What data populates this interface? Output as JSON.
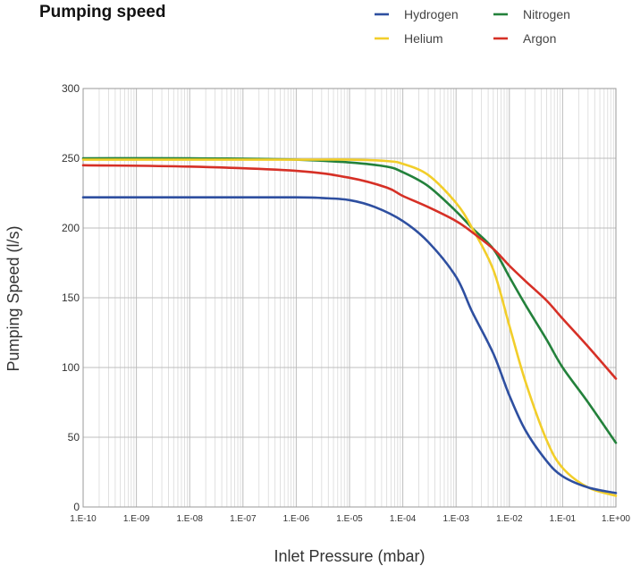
{
  "chart_data": {
    "type": "line",
    "title": "Pumping speed",
    "xlabel": "Inlet Pressure (mbar)",
    "ylabel": "Pumping Speed (l/s)",
    "x_scale": "log",
    "xlim": [
      1e-10,
      1
    ],
    "ylim": [
      0,
      300
    ],
    "grid": true,
    "legend_position": "top-right",
    "x_ticks": [
      {
        "value": 1e-10,
        "label": "1.E-10"
      },
      {
        "value": 1e-09,
        "label": "1.E-09"
      },
      {
        "value": 1e-08,
        "label": "1.E-08"
      },
      {
        "value": 1e-07,
        "label": "1.E-07"
      },
      {
        "value": 1e-06,
        "label": "1.E-06"
      },
      {
        "value": 1e-05,
        "label": "1.E-05"
      },
      {
        "value": 0.0001,
        "label": "1.E-04"
      },
      {
        "value": 0.001,
        "label": "1.E-03"
      },
      {
        "value": 0.01,
        "label": "1.E-02"
      },
      {
        "value": 0.1,
        "label": "1.E-01"
      },
      {
        "value": 1,
        "label": "1.E+00"
      }
    ],
    "y_ticks": [
      0,
      50,
      100,
      150,
      200,
      250,
      300
    ],
    "series": [
      {
        "name": "Hydrogen",
        "color": "#2E4FA0",
        "x": [
          1e-10,
          1e-08,
          1e-06,
          3e-06,
          1e-05,
          3e-05,
          0.0001,
          0.0003,
          0.001,
          0.002,
          0.005,
          0.01,
          0.02,
          0.05,
          0.1,
          0.3,
          1
        ],
        "y": [
          222,
          222,
          222,
          221.5,
          220,
          215,
          205,
          190,
          165,
          140,
          110,
          80,
          55,
          33,
          22,
          14,
          10
        ]
      },
      {
        "name": "Helium",
        "color": "#F2CE2A",
        "x": [
          1e-10,
          1e-08,
          1e-06,
          1e-05,
          5e-05,
          0.0001,
          0.0003,
          0.001,
          0.002,
          0.005,
          0.01,
          0.02,
          0.05,
          0.1,
          0.3,
          1
        ],
        "y": [
          249,
          249,
          249,
          249,
          248,
          246,
          238,
          218,
          200,
          170,
          130,
          90,
          48,
          28,
          14,
          8
        ]
      },
      {
        "name": "Nitrogen",
        "color": "#23813B",
        "x": [
          1e-10,
          1e-08,
          1e-06,
          1e-05,
          5e-05,
          0.0001,
          0.0003,
          0.001,
          0.002,
          0.005,
          0.01,
          0.02,
          0.05,
          0.1,
          0.3,
          1
        ],
        "y": [
          250,
          250,
          249,
          247,
          244,
          240,
          230,
          212,
          200,
          185,
          165,
          145,
          120,
          100,
          75,
          46
        ]
      },
      {
        "name": "Argon",
        "color": "#D63026",
        "x": [
          1e-10,
          1e-08,
          1e-06,
          1e-05,
          5e-05,
          0.0001,
          0.0003,
          0.001,
          0.002,
          0.005,
          0.01,
          0.02,
          0.05,
          0.1,
          0.3,
          1
        ],
        "y": [
          245,
          244,
          241,
          236,
          229,
          223,
          215,
          205,
          197,
          185,
          173,
          162,
          148,
          135,
          115,
          92
        ]
      }
    ]
  }
}
